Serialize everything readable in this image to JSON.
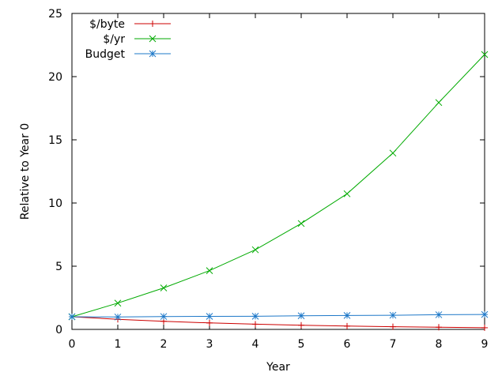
{
  "chart_data": {
    "type": "line",
    "title": "",
    "xlabel": "Year",
    "ylabel": "Relative to Year 0",
    "xlim": [
      0,
      9
    ],
    "ylim": [
      0,
      25
    ],
    "x_ticks": [
      0,
      1,
      2,
      3,
      4,
      5,
      6,
      7,
      8,
      9
    ],
    "y_ticks": [
      0,
      5,
      10,
      15,
      20,
      25
    ],
    "grid": false,
    "legend_position": "top-left",
    "x": [
      0,
      1,
      2,
      3,
      4,
      5,
      6,
      7,
      8,
      9
    ],
    "series": [
      {
        "name": "$/byte",
        "color": "#cc0000",
        "marker": "plus",
        "values": [
          1.0,
          0.8,
          0.64,
          0.51,
          0.41,
          0.33,
          0.26,
          0.21,
          0.17,
          0.13
        ]
      },
      {
        "name": "$/yr",
        "color": "#00aa00",
        "marker": "cross",
        "values": [
          1.0,
          2.08,
          3.28,
          4.65,
          6.3,
          8.38,
          10.73,
          13.95,
          17.95,
          21.75
        ]
      },
      {
        "name": "Budget",
        "color": "#1e78c8",
        "marker": "star",
        "values": [
          1.0,
          0.98,
          1.02,
          1.03,
          1.04,
          1.08,
          1.1,
          1.12,
          1.16,
          1.18
        ]
      }
    ]
  }
}
